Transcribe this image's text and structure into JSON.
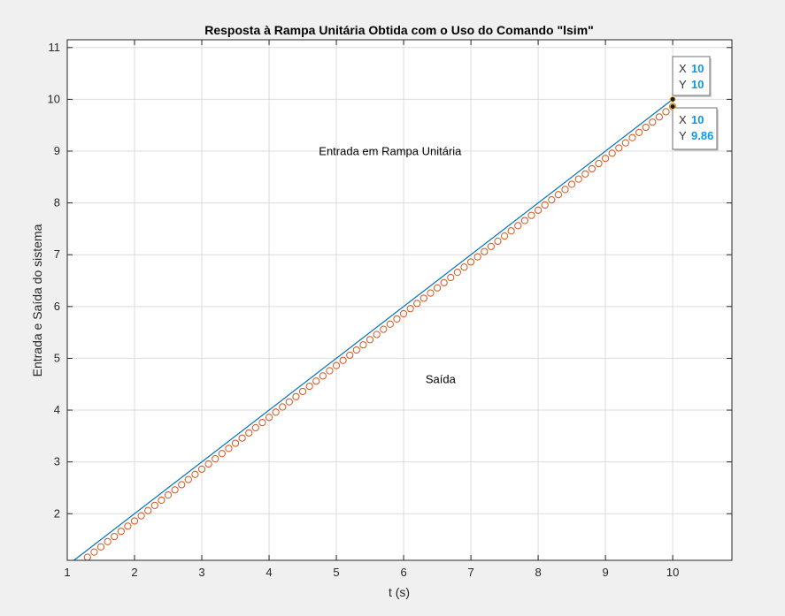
{
  "chart_data": {
    "type": "line",
    "title": "Resposta à Rampa Unitária Obtida com o Uso do Comando \"lsim\"",
    "xlabel": "t (s)",
    "ylabel": "Entrada e Saída do sistema",
    "xlim": [
      1,
      10.88
    ],
    "ylim": [
      1.1,
      11.15
    ],
    "xticks": [
      1,
      2,
      3,
      4,
      5,
      6,
      7,
      8,
      9,
      10
    ],
    "yticks": [
      2,
      3,
      4,
      5,
      6,
      7,
      8,
      9,
      10,
      11
    ],
    "grid": true,
    "series": [
      {
        "name": "Entrada em Rampa Unitária",
        "color": "#0072bd",
        "marker": "none",
        "x_range": [
          1.1,
          10
        ],
        "equation": "y = t"
      },
      {
        "name": "Saída",
        "color": "#d95319",
        "marker": "circle",
        "x_step": 0.1,
        "x_range": [
          1.3,
          10
        ],
        "equation": "y = t - 0.14"
      }
    ],
    "annotations": [
      {
        "text": "Entrada em Rampa Unitária",
        "x": 5.8,
        "y": 8.92
      },
      {
        "text": "Saída",
        "x": 6.55,
        "y": 4.52
      }
    ],
    "datatips": [
      {
        "x_label": "X",
        "y_label": "Y",
        "x": "10",
        "y": "10",
        "point": [
          10,
          10
        ]
      },
      {
        "x_label": "X",
        "y_label": "Y",
        "x": "10",
        "y": "9.86",
        "point": [
          10,
          9.86
        ]
      }
    ]
  }
}
